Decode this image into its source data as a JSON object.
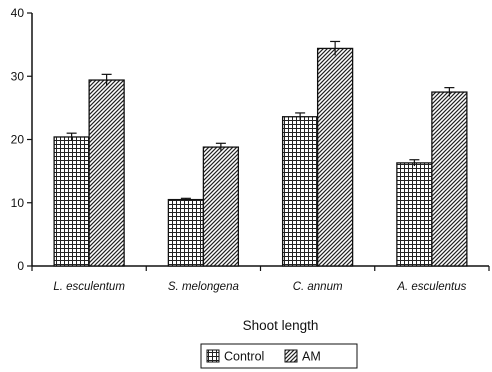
{
  "chart_data": {
    "type": "bar",
    "categories": [
      "L. esculentum",
      "S. melongena",
      "C. annum",
      "A. esculentus"
    ],
    "series": [
      {
        "name": "Control",
        "values": [
          20.4,
          10.5,
          23.6,
          16.3
        ],
        "errors": [
          0.6,
          0.2,
          0.6,
          0.5
        ],
        "pattern": "grid"
      },
      {
        "name": "AM",
        "values": [
          29.4,
          18.8,
          34.4,
          27.5
        ],
        "errors": [
          0.9,
          0.6,
          1.1,
          0.7
        ],
        "pattern": "diagonal"
      }
    ],
    "title": "",
    "xlabel": "Shoot length",
    "ylabel": "",
    "ylim": [
      0,
      40
    ],
    "yticks": [
      0,
      10,
      20,
      30,
      40
    ],
    "grid": false,
    "legend_position": "bottom-center",
    "colors": {
      "bar_fill": "#ffffff",
      "bar_stroke": "#111111",
      "axis": "#111111"
    }
  }
}
